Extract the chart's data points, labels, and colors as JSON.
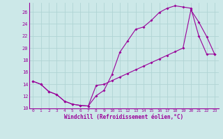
{
  "xlabel": "Windchill (Refroidissement éolien,°C)",
  "bg_color": "#cce8e8",
  "grid_color": "#b0d4d4",
  "line_color": "#990099",
  "xlim": [
    -0.5,
    23.5
  ],
  "ylim": [
    10,
    27.5
  ],
  "xticks": [
    0,
    1,
    2,
    3,
    4,
    5,
    6,
    7,
    8,
    9,
    10,
    11,
    12,
    13,
    14,
    15,
    16,
    17,
    18,
    19,
    20,
    21,
    22,
    23
  ],
  "yticks": [
    10,
    12,
    14,
    16,
    18,
    20,
    22,
    24,
    26
  ],
  "line1_x": [
    0,
    1,
    2,
    3,
    4,
    5,
    6,
    7,
    8,
    9,
    10,
    11,
    12,
    13,
    14,
    15,
    16,
    17,
    18,
    19,
    20,
    21,
    22,
    23
  ],
  "line1_y": [
    14.5,
    14.0,
    12.8,
    12.3,
    11.2,
    10.7,
    10.5,
    10.4,
    12.1,
    13.0,
    15.6,
    19.3,
    21.2,
    23.1,
    23.5,
    24.6,
    25.9,
    26.6,
    27.0,
    26.8,
    26.6,
    22.0,
    19.0,
    19.0
  ],
  "line2_x": [
    0,
    1,
    2,
    3,
    4,
    5,
    6,
    7,
    8,
    9,
    10,
    11,
    12,
    13,
    14,
    15,
    16,
    17,
    18,
    19,
    20,
    21,
    22,
    23
  ],
  "line2_y": [
    14.5,
    14.0,
    12.8,
    12.3,
    11.2,
    10.7,
    10.5,
    10.4,
    13.8,
    14.0,
    14.6,
    15.2,
    15.8,
    16.4,
    17.0,
    17.6,
    18.2,
    18.8,
    19.4,
    20.0,
    26.3,
    24.3,
    21.9,
    19.0
  ]
}
